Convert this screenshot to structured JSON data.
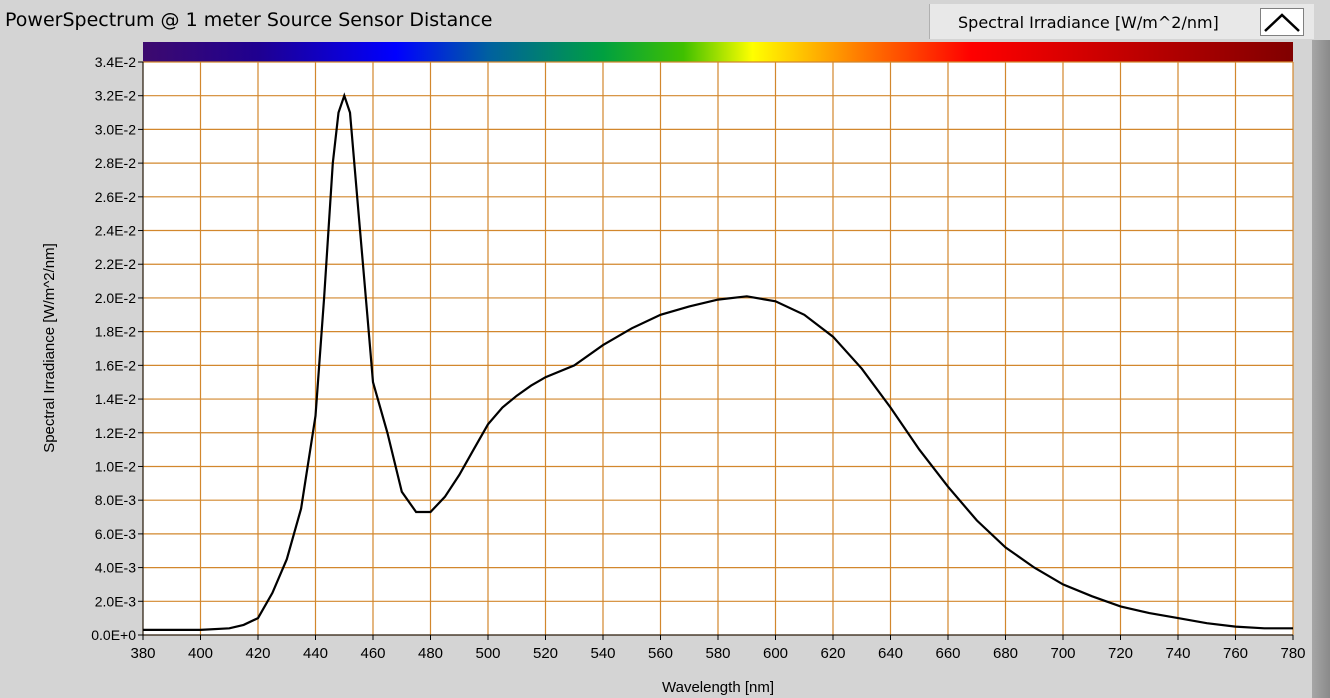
{
  "window": {
    "title": "PowerSpectrum @ 1 meter Source Sensor Distance"
  },
  "legend": {
    "label": "Spectral Irradiance [W/m^2/nm]",
    "icon": "line-plot-icon"
  },
  "colors": {
    "plot_bg": "#ffffff",
    "grid": "#d2872d",
    "line": "#000000",
    "frame_bg": "#d4d4d4"
  },
  "chart_data": {
    "type": "line",
    "title": "PowerSpectrum @ 1 meter Source Sensor Distance",
    "xlabel": "Wavelength [nm]",
    "ylabel": "Spectral Irradiance [W/m^2/nm]",
    "xlim": [
      380,
      780
    ],
    "ylim": [
      0,
      0.034
    ],
    "grid": true,
    "legend_position": "top-right",
    "x_ticks": [
      "380",
      "400",
      "420",
      "440",
      "460",
      "480",
      "500",
      "520",
      "540",
      "560",
      "580",
      "600",
      "620",
      "640",
      "660",
      "680",
      "700",
      "720",
      "740",
      "760",
      "780"
    ],
    "y_ticks": [
      "0.0E+0",
      "2.0E-3",
      "4.0E-3",
      "6.0E-3",
      "8.0E-3",
      "1.0E-2",
      "1.2E-2",
      "1.4E-2",
      "1.6E-2",
      "1.8E-2",
      "2.0E-2",
      "2.2E-2",
      "2.4E-2",
      "2.6E-2",
      "2.8E-2",
      "3.0E-2",
      "3.2E-2",
      "3.4E-2"
    ],
    "series": [
      {
        "name": "Spectral Irradiance [W/m^2/nm]",
        "x": [
          380,
          390,
          400,
          410,
          415,
          420,
          425,
          430,
          435,
          440,
          443,
          446,
          448,
          450,
          452,
          455,
          458,
          460,
          465,
          470,
          475,
          480,
          485,
          490,
          495,
          500,
          505,
          510,
          515,
          520,
          530,
          540,
          550,
          560,
          570,
          580,
          590,
          600,
          610,
          620,
          630,
          640,
          650,
          660,
          670,
          680,
          690,
          700,
          710,
          720,
          730,
          740,
          750,
          760,
          770,
          780
        ],
        "y": [
          0.0003,
          0.0003,
          0.0003,
          0.0004,
          0.0006,
          0.001,
          0.0025,
          0.0045,
          0.0075,
          0.013,
          0.02,
          0.028,
          0.031,
          0.032,
          0.031,
          0.025,
          0.019,
          0.015,
          0.012,
          0.0085,
          0.0073,
          0.0073,
          0.0082,
          0.0095,
          0.011,
          0.0125,
          0.0135,
          0.0142,
          0.0148,
          0.0153,
          0.016,
          0.0172,
          0.0182,
          0.019,
          0.0195,
          0.0199,
          0.0201,
          0.0198,
          0.019,
          0.0177,
          0.0158,
          0.0135,
          0.011,
          0.0088,
          0.0068,
          0.0052,
          0.004,
          0.003,
          0.0023,
          0.0017,
          0.0013,
          0.001,
          0.0007,
          0.0005,
          0.0004,
          0.0004
        ]
      }
    ]
  }
}
